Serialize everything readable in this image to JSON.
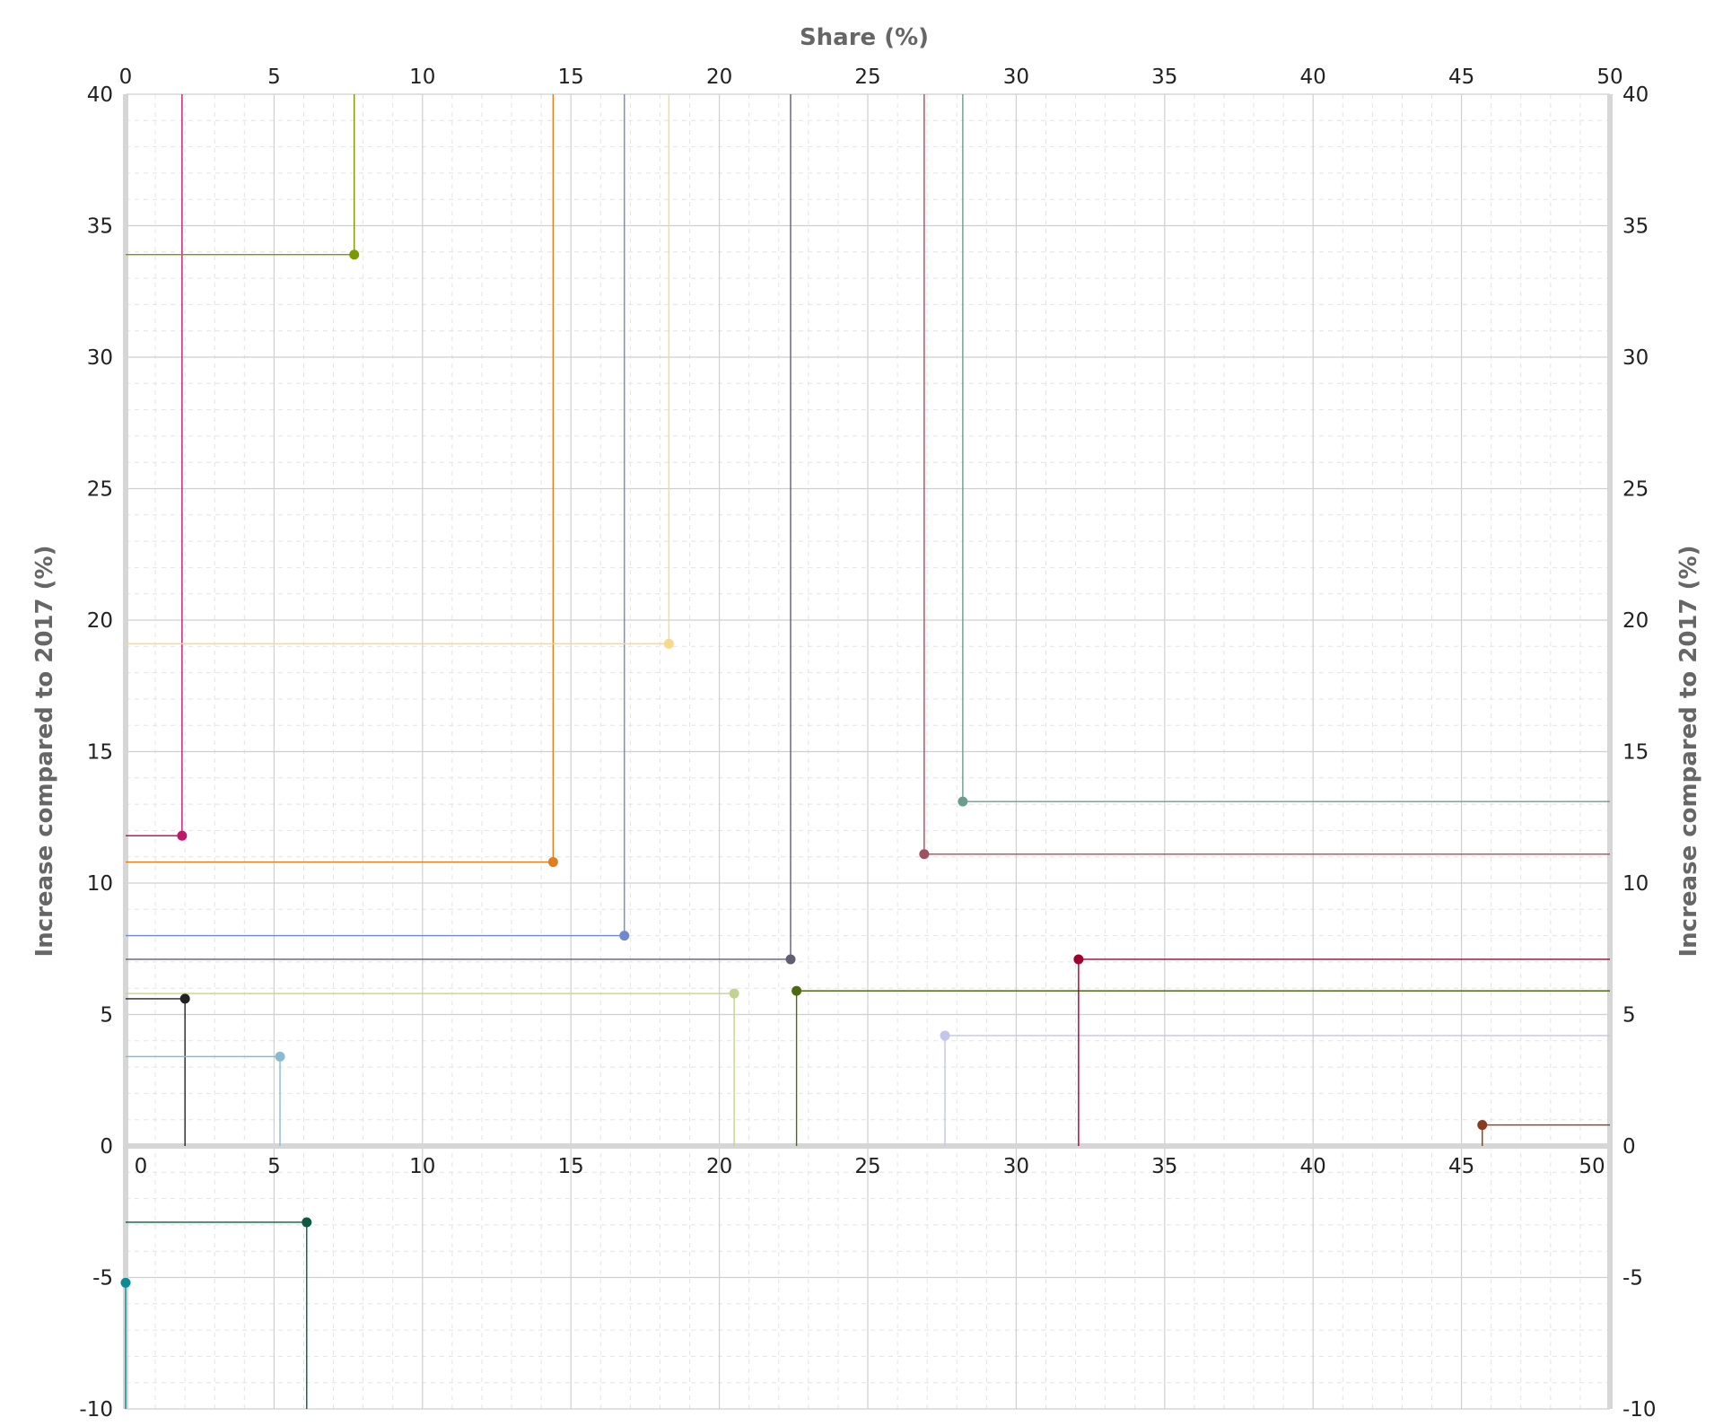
{
  "chart_data": {
    "type": "scatter",
    "title": "",
    "xlabel": "Share (%)",
    "ylabel": "Increase compared to 2017 (%)",
    "y2label": "Increase compared to 2017 (%)",
    "xlim": [
      0,
      50
    ],
    "ylim": [
      -10,
      40
    ],
    "x_ticks": [
      0,
      5,
      10,
      15,
      20,
      25,
      30,
      35,
      40,
      45,
      50
    ],
    "y_ticks": [
      -10,
      -5,
      0,
      5,
      10,
      15,
      20,
      25,
      30,
      35,
      40
    ],
    "grid": true,
    "points": [
      {
        "x": 1.9,
        "y": 11.8,
        "color": "#c0166c",
        "hline_to": "left",
        "vline_to": "top"
      },
      {
        "x": 7.7,
        "y": 33.9,
        "color": "#7a9a01",
        "hline_to": "left",
        "vline_to": "top"
      },
      {
        "x": 14.4,
        "y": 10.8,
        "color": "#e37d1a",
        "hline_to": "left",
        "vline_to": "top"
      },
      {
        "x": 16.8,
        "y": 8.0,
        "color": "#7088d0",
        "hline_to": "left",
        "vline_to": "top"
      },
      {
        "x": 18.3,
        "y": 19.1,
        "color": "#f8d88a",
        "hline_to": "left",
        "vline_to": "top"
      },
      {
        "x": 22.4,
        "y": 7.1,
        "color": "#615e73",
        "hline_to": "left",
        "vline_to": "top"
      },
      {
        "x": 26.9,
        "y": 11.1,
        "color": "#a1505e",
        "hline_to": "right",
        "vline_to": "top"
      },
      {
        "x": 28.2,
        "y": 13.1,
        "color": "#6b9d8e",
        "hline_to": "right",
        "vline_to": "top"
      },
      {
        "x": 2.0,
        "y": 5.6,
        "color": "#222222",
        "hline_to": "left",
        "vline_to": "zero"
      },
      {
        "x": 5.2,
        "y": 3.4,
        "color": "#88bbd1",
        "hline_to": "left",
        "vline_to": "zero"
      },
      {
        "x": 20.5,
        "y": 5.8,
        "color": "#c2d38f",
        "hline_to": "left",
        "vline_to": "zero"
      },
      {
        "x": 22.6,
        "y": 5.9,
        "color": "#4b6a10",
        "hline_to": "right",
        "vline_to": "zero"
      },
      {
        "x": 27.6,
        "y": 4.2,
        "color": "#c2c5ec",
        "hline_to": "right",
        "vline_to": "zero"
      },
      {
        "x": 32.1,
        "y": 7.1,
        "color": "#a3002f",
        "hline_to": "right",
        "vline_to": "zero"
      },
      {
        "x": 45.7,
        "y": 0.8,
        "color": "#8a3a1e",
        "hline_to": "right",
        "vline_to": "zero"
      },
      {
        "x": 6.1,
        "y": -2.9,
        "color": "#0c5a3f",
        "hline_to": "left",
        "vline_to": "bottom"
      },
      {
        "x": 0.0,
        "y": -5.2,
        "color": "#0b8b96",
        "hline_to": "left",
        "vline_to": "bottom"
      }
    ]
  }
}
